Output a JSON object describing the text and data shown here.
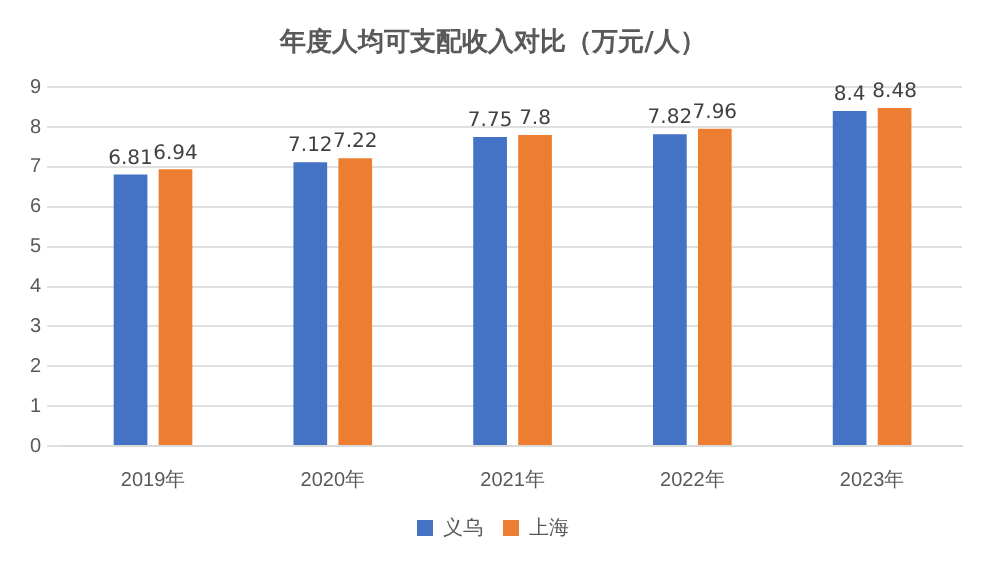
{
  "chart_data": {
    "type": "bar",
    "title": "年度人均可支配收入对比（万元/人）",
    "categories": [
      "2019年",
      "2020年",
      "2021年",
      "2022年",
      "2023年"
    ],
    "series": [
      {
        "name": "义乌",
        "color": "#4472c4",
        "values": [
          6.81,
          7.12,
          7.75,
          7.82,
          8.4
        ]
      },
      {
        "name": "上海",
        "color": "#ed7d31",
        "values": [
          6.94,
          7.22,
          7.8,
          7.96,
          8.48
        ]
      }
    ],
    "ylim": [
      0,
      9
    ],
    "yticks": [
      0,
      1,
      2,
      3,
      4,
      5,
      6,
      7,
      8,
      9
    ],
    "grid": "y",
    "legend": "bottom",
    "data_labels": true
  }
}
